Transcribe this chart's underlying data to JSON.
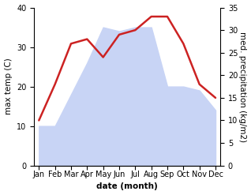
{
  "months": [
    "Jan",
    "Feb",
    "Mar",
    "Apr",
    "May",
    "Jun",
    "Jul",
    "Aug",
    "Sep",
    "Oct",
    "Nov",
    "Dec"
  ],
  "max_temp": [
    10,
    10,
    18,
    26,
    35,
    34,
    35,
    35,
    20,
    20,
    19,
    14
  ],
  "precipitation": [
    10,
    18,
    27,
    28,
    24,
    29,
    30,
    33,
    33,
    27,
    18,
    15
  ],
  "temp_fill_color": "#c8d4f5",
  "precip_color": "#cc2222",
  "temp_ylim": [
    0,
    40
  ],
  "precip_ylim": [
    0,
    35
  ],
  "xlabel": "date (month)",
  "ylabel_left": "max temp (C)",
  "ylabel_right": "med. precipitation (kg/m2)",
  "label_fontsize": 7.5,
  "tick_fontsize": 7,
  "background_color": "#ffffff"
}
